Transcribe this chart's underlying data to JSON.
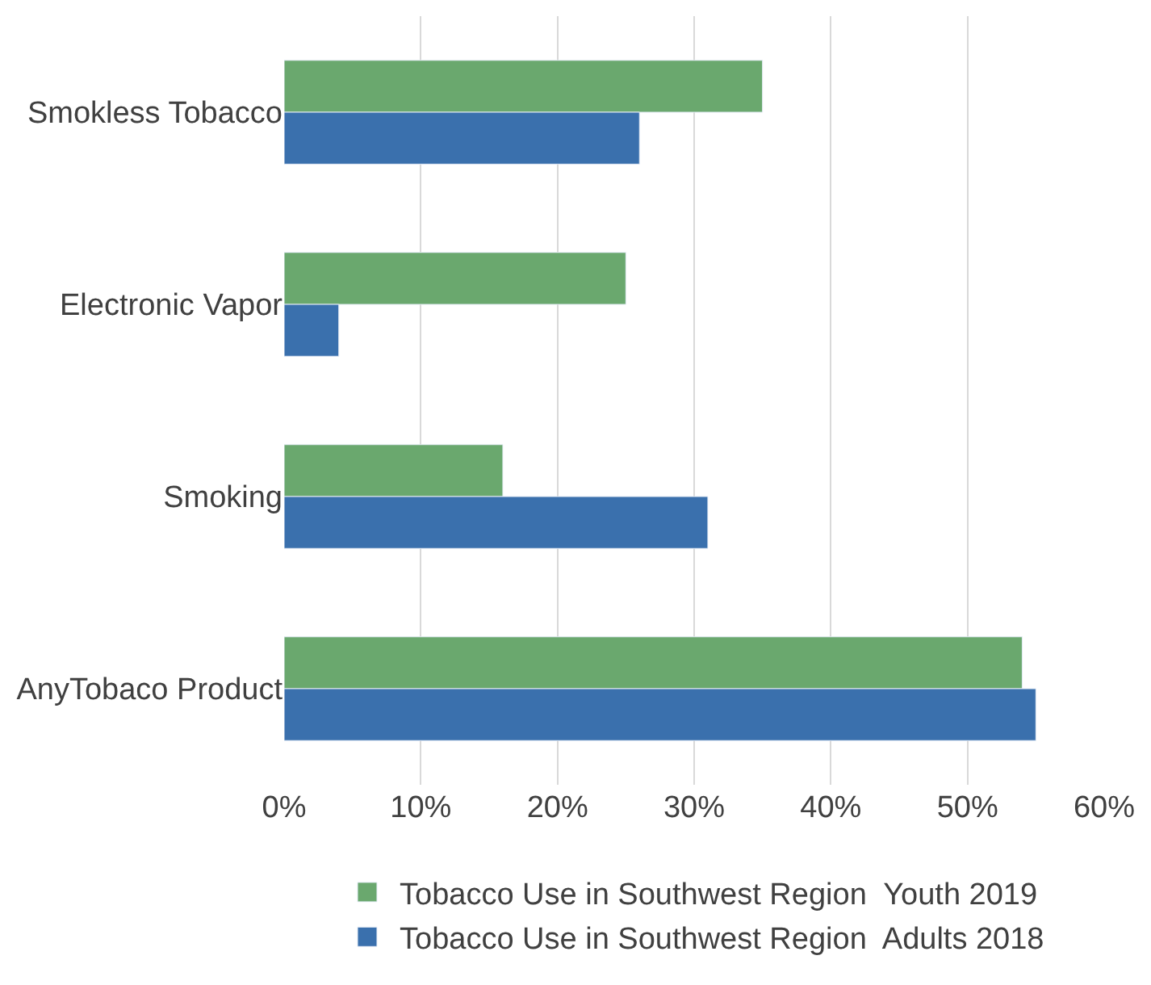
{
  "chart_data": {
    "type": "bar",
    "orientation": "horizontal",
    "categories": [
      "Smokless Tobacco",
      "Electronic Vapor",
      "Smoking",
      "AnyTobaco Product"
    ],
    "series": [
      {
        "name": "Tobacco Use in Southwest Region  Youth 2019",
        "color": "#6aa86e",
        "values": [
          35,
          25,
          16,
          54
        ]
      },
      {
        "name": "Tobacco Use in Southwest Region  Adults 2018",
        "color": "#3a70ad",
        "values": [
          26,
          4,
          31,
          55
        ]
      }
    ],
    "xlim": [
      0,
      60
    ],
    "xticks": [
      {
        "value": 0,
        "label": "0%"
      },
      {
        "value": 10,
        "label": "10%"
      },
      {
        "value": 20,
        "label": "20%"
      },
      {
        "value": 30,
        "label": "30%"
      },
      {
        "value": 40,
        "label": "40%"
      },
      {
        "value": 50,
        "label": "50%"
      },
      {
        "value": 60,
        "label": "60%"
      }
    ],
    "grid": "x",
    "legend": "bottom"
  }
}
